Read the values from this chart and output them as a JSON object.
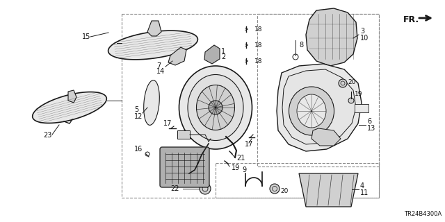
{
  "background_color": "#ffffff",
  "diagram_code": "TR24B4300A",
  "figsize": [
    6.4,
    3.2
  ],
  "dpi": 100,
  "line_color": "#1a1a1a",
  "label_color": "#111111",
  "fill_light": "#e8e8e8",
  "fill_mid": "#d0d0d0",
  "fill_dark": "#b0b0b0",
  "dash_color": "#888888"
}
